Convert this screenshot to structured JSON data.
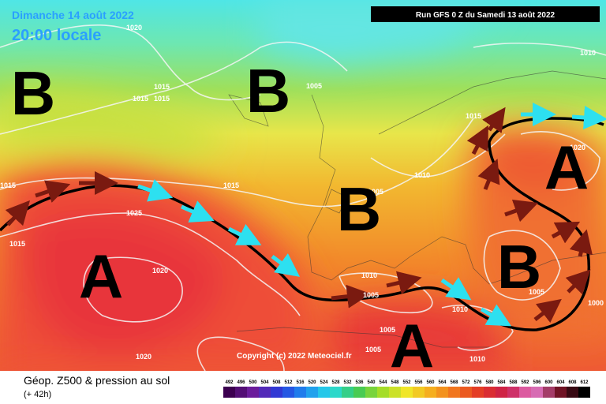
{
  "header": {
    "date": "Dimanche 14 août 2022",
    "time": "20:00 locale",
    "run": "Run GFS 0 Z du Samedi 13 août 2022"
  },
  "pressure_centers": [
    "B",
    "B",
    "B",
    "A",
    "A",
    "B",
    "A"
  ],
  "isobar_labels": [
    "1020",
    "1015",
    "1015",
    "1015",
    "1005",
    "1015",
    "1010",
    "1005",
    "1015",
    "1015",
    "1025",
    "1015",
    "1020",
    "1010",
    "1005",
    "1010",
    "1005",
    "1005",
    "1005",
    "1020",
    "1010",
    "1020",
    "1010",
    "1000"
  ],
  "copyright": "Copyright (c) 2022 Meteociel.fr",
  "legend": {
    "title": "Géop. Z500 & pression au sol",
    "step": "(+ 42h)",
    "scale": [
      "492",
      "496",
      "500",
      "504",
      "508",
      "512",
      "516",
      "520",
      "524",
      "528",
      "532",
      "536",
      "540",
      "544",
      "548",
      "552",
      "556",
      "560",
      "564",
      "568",
      "572",
      "576",
      "580",
      "584",
      "588",
      "592",
      "596",
      "600",
      "604",
      "608",
      "612"
    ]
  }
}
